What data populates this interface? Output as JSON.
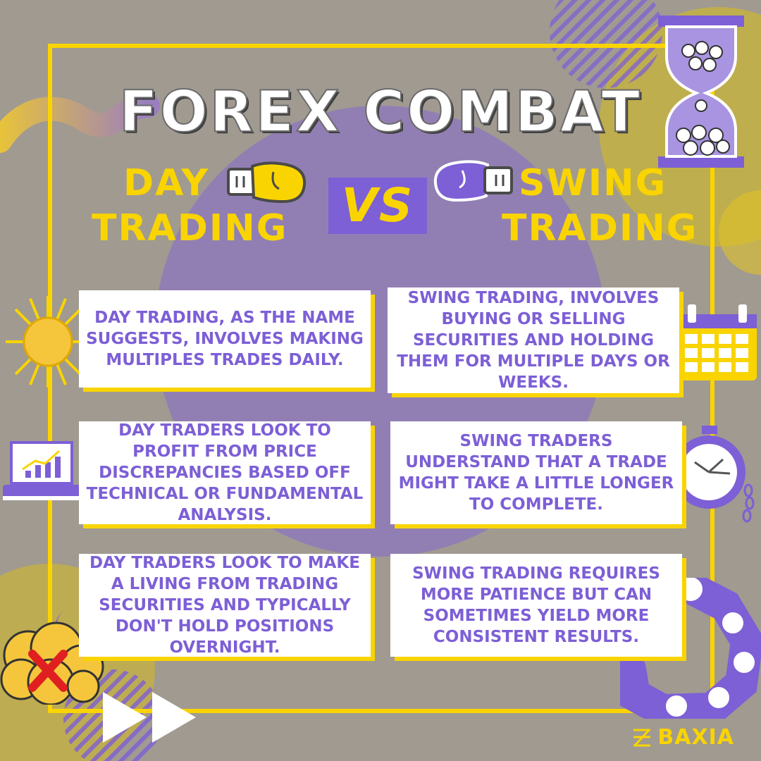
{
  "title": "FOREX COMBAT",
  "left_heading": {
    "line1": "DAY",
    "line2": "TRADING"
  },
  "vs": "VS",
  "right_heading": {
    "line1": "SWING",
    "line2": "TRADING"
  },
  "day_cards": [
    "DAY TRADING, AS THE NAME SUGGESTS, INVOLVES MAKING MULTIPLES TRADES DAILY.",
    "DAY TRADERS LOOK TO PROFIT FROM PRICE DISCREPANCIES BASED OFF TECHNICAL OR FUNDAMENTAL ANALYSIS.",
    "DAY TRADERS LOOK TO MAKE A LIVING FROM TRADING SECURITIES AND TYPICALLY DON'T HOLD POSITIONS OVERNIGHT."
  ],
  "swing_cards": [
    "SWING TRADING, INVOLVES BUYING OR SELLING SECURITIES AND HOLDING THEM FOR MULTIPLE DAYS OR WEEKS.",
    "SWING TRADERS UNDERSTAND THAT A TRADE MIGHT TAKE A LITTLE LONGER TO COMPLETE.",
    "SWING TRADING REQUIRES MORE PATIENCE BUT CAN SOMETIMES YIELD MORE CONSISTENT RESULTS."
  ],
  "brand": "BAXIA",
  "colors": {
    "purple": "#7d5fd6",
    "yellow": "#f9d400",
    "background": "#a09a91",
    "white": "#ffffff"
  },
  "icons": [
    "hourglass-icon",
    "boxing-glove-yellow-icon",
    "boxing-glove-purple-icon",
    "sun-icon",
    "calendar-icon",
    "laptop-chart-icon",
    "stopwatch-icon",
    "cloud-x-icon",
    "moon-icon",
    "fast-forward-icon",
    "puzzle-icon",
    "baxia-logo-icon"
  ]
}
